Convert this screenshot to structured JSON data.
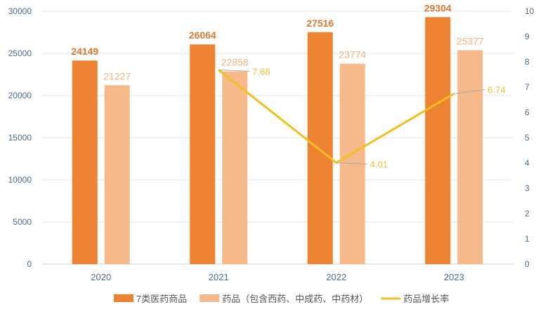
{
  "chart_data": {
    "type": "bar",
    "categories": [
      "2020",
      "2021",
      "2022",
      "2023"
    ],
    "series": [
      {
        "name": "7类医药商品",
        "type": "bar",
        "axis": "left",
        "color": "#ED8232",
        "label_color": "#D87A32",
        "values": [
          24149,
          26064,
          27516,
          29304
        ]
      },
      {
        "name": "药品（包含西药、中成药、中药材）",
        "type": "bar",
        "axis": "left",
        "color": "#F5B98A",
        "label_color": "#F2B283",
        "values": [
          21227,
          22858,
          23774,
          25377
        ]
      },
      {
        "name": "药品增长率",
        "type": "line",
        "axis": "right",
        "color": "#F3BE22",
        "label_color": "#EDBE33",
        "values": [
          null,
          7.68,
          4.01,
          6.74
        ],
        "value_labels": [
          "",
          "7.68",
          "4.01",
          "6.74"
        ]
      }
    ],
    "y_left": {
      "range": [
        0,
        30000
      ],
      "ticks": [
        "0",
        "5000",
        "10000",
        "15000",
        "20000",
        "25000",
        "30000"
      ]
    },
    "y_right": {
      "range": [
        0,
        10
      ],
      "ticks": [
        "0",
        "1",
        "2",
        "3",
        "4",
        "5",
        "6",
        "7",
        "8",
        "9",
        "10"
      ]
    },
    "grid": "horizontal",
    "legend_position": "bottom",
    "axis_text_color": "#4A6C8C",
    "grid_color": "#E4E4E4"
  }
}
